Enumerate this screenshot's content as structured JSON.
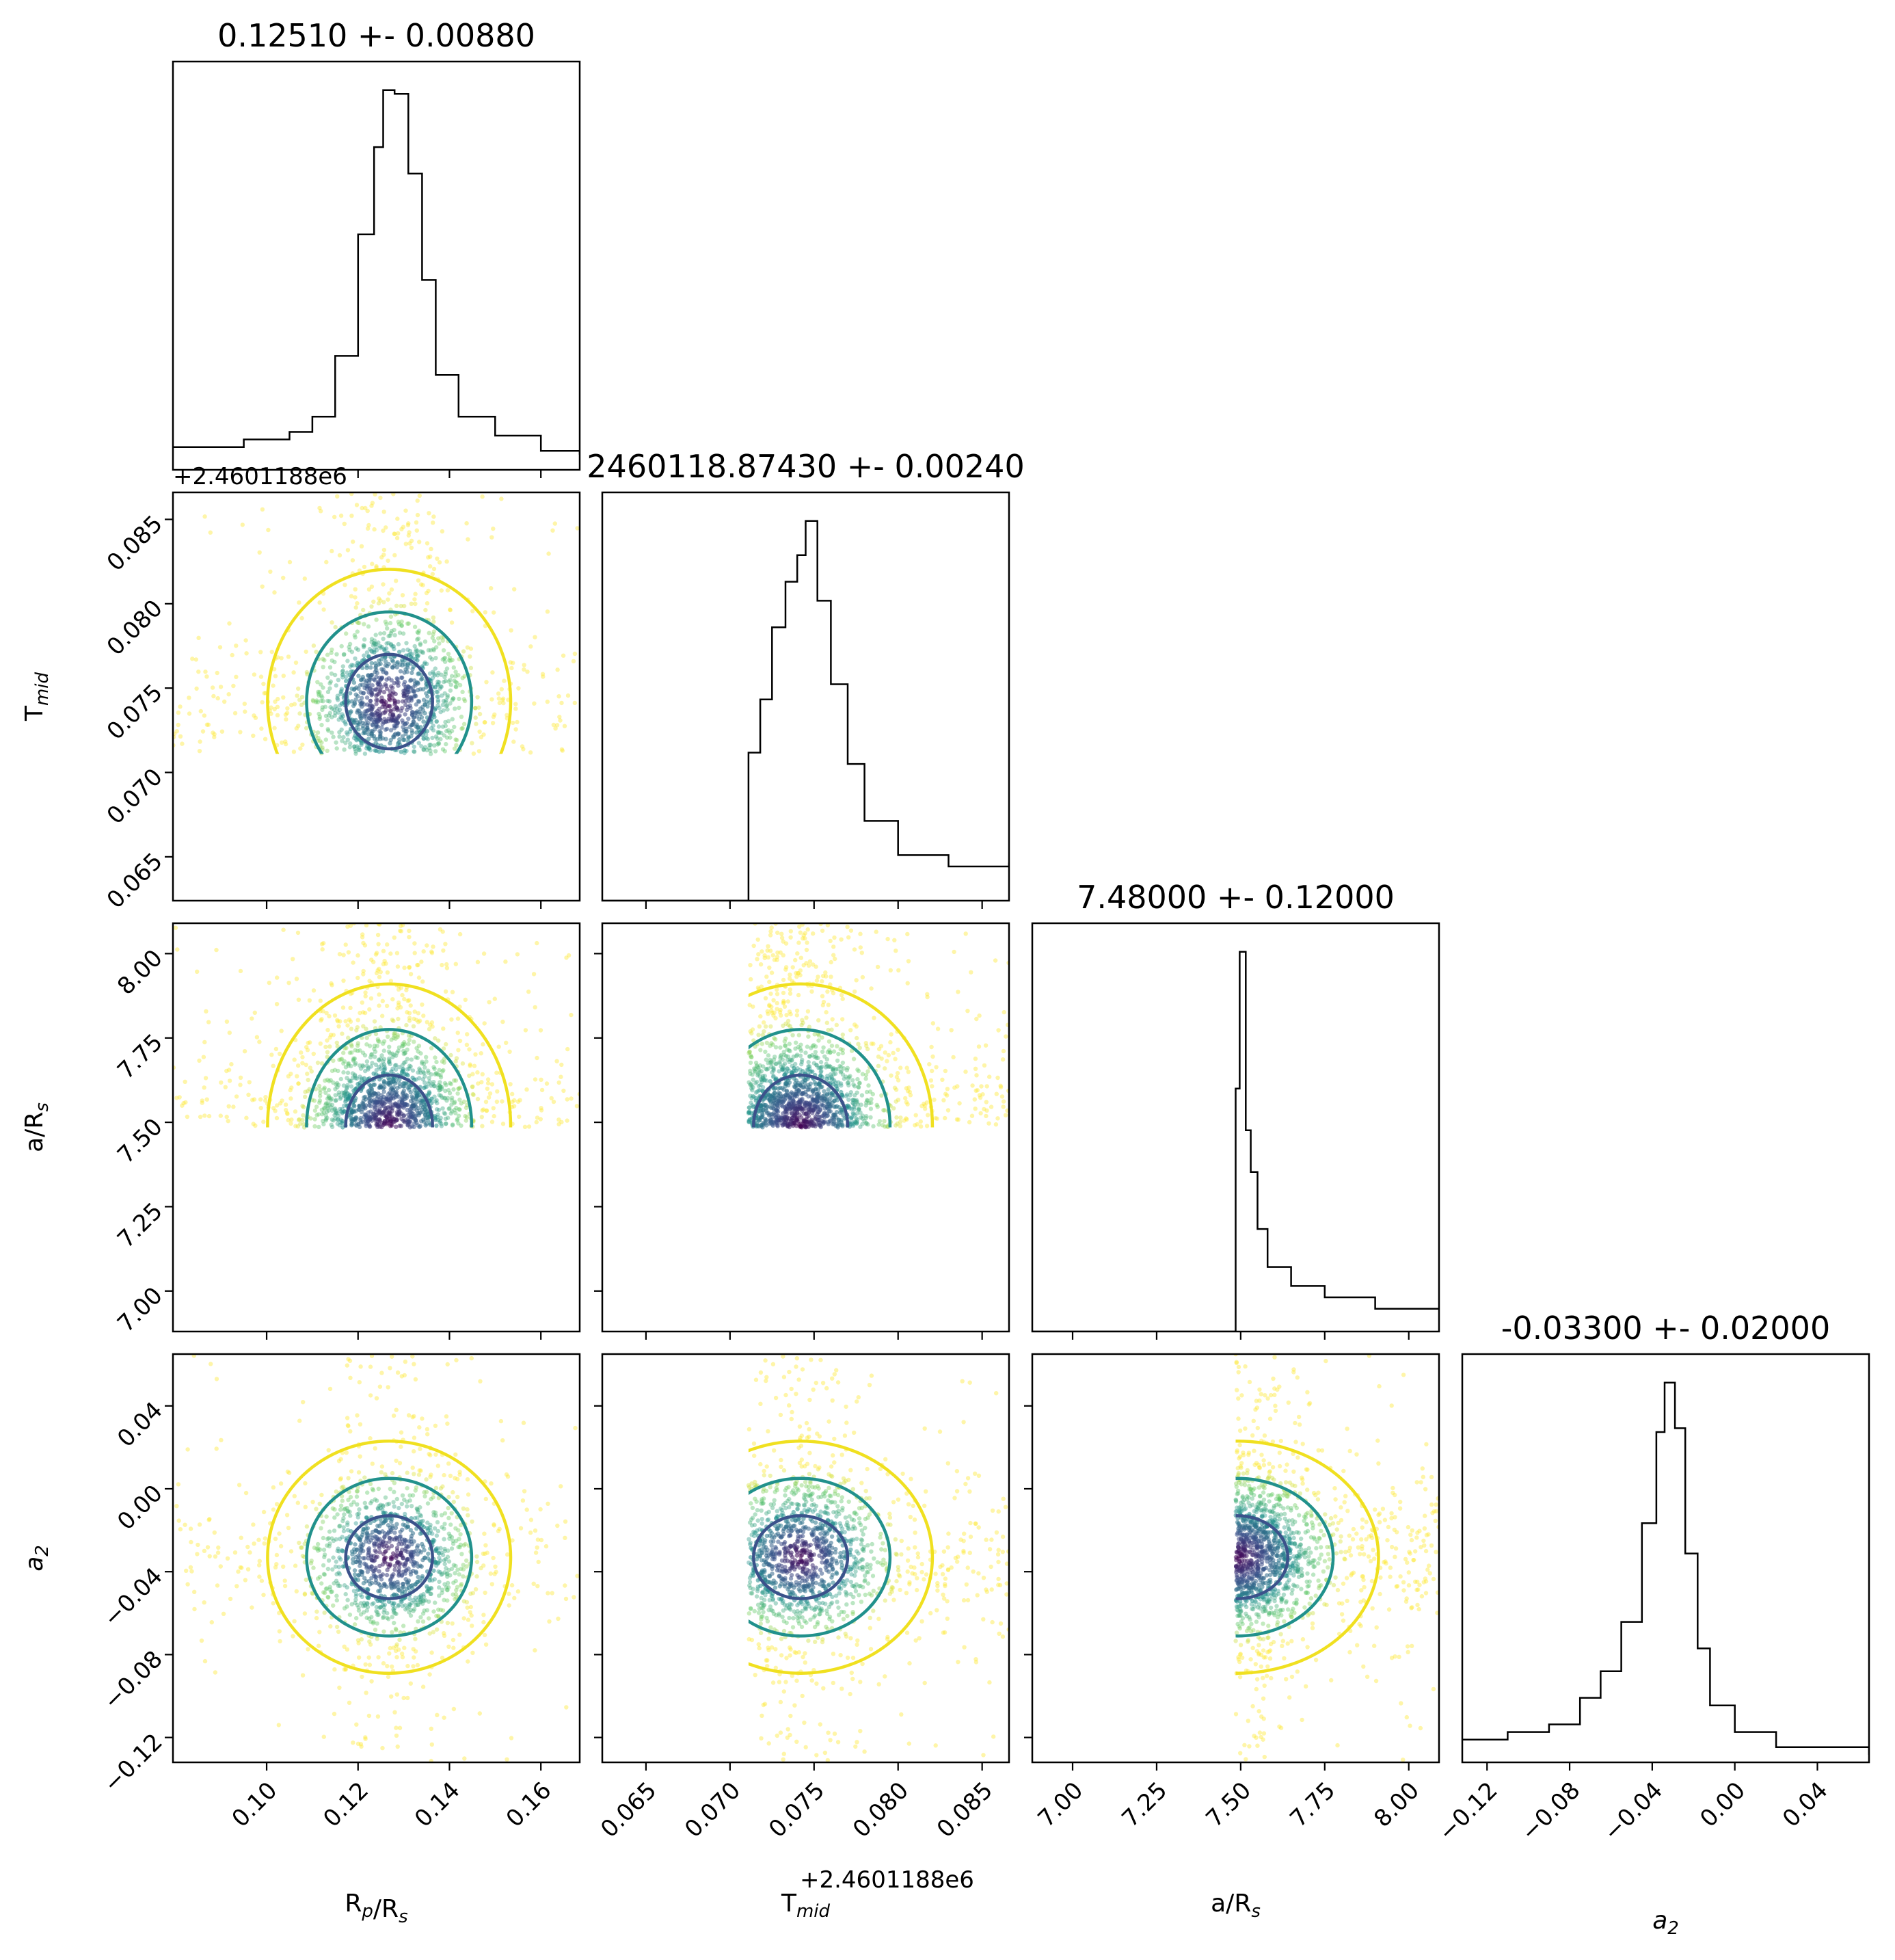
{
  "chart_data": {
    "type": "corner",
    "parameters": [
      {
        "key": "rp",
        "label": "R_p/R_s",
        "title": "0.12510 +- 0.00880",
        "range": [
          0.0795,
          0.1685
        ],
        "ticks": [
          0.1,
          0.12,
          0.14,
          0.16
        ],
        "tick_labels": [
          "0.10",
          "0.12",
          "0.14",
          "0.16"
        ],
        "center": 0.1268,
        "sigma": 0.0095
      },
      {
        "key": "tmid",
        "label": "T_mid",
        "title": "2460118.87430 +- 0.00240",
        "offset_label": "+2.4601188e6",
        "range": [
          0.0624,
          0.0866
        ],
        "ticks": [
          0.065,
          0.07,
          0.075,
          0.08,
          0.085
        ],
        "tick_labels": [
          "0.065",
          "0.070",
          "0.075",
          "0.080",
          "0.085"
        ],
        "center": 0.0742,
        "sigma": 0.0028,
        "lower_bound": 0.0711
      },
      {
        "key": "ars",
        "label": "a/R_s",
        "title": "7.48000 +- 0.12000",
        "range": [
          6.88,
          8.09
        ],
        "ticks": [
          7.0,
          7.25,
          7.5,
          7.75,
          8.0
        ],
        "tick_labels": [
          "7.00",
          "7.25",
          "7.50",
          "7.75",
          "8.00"
        ],
        "center": 7.49,
        "sigma": 0.15,
        "lower_bound": 7.485
      },
      {
        "key": "a2",
        "label": "a_2",
        "title": "-0.03300 +- 0.02000",
        "range": [
          -0.132,
          0.065
        ],
        "ticks": [
          -0.12,
          -0.08,
          -0.04,
          0.0,
          0.04
        ],
        "tick_labels": [
          "−0.12",
          "−0.08",
          "−0.04",
          "0.00",
          "0.04"
        ],
        "center": -0.033,
        "sigma": 0.02
      }
    ],
    "histograms": {
      "rp": [
        {
          "x": 0.0795,
          "v": 0.06
        },
        {
          "x": 0.095,
          "v": 0.08
        },
        {
          "x": 0.105,
          "v": 0.1
        },
        {
          "x": 0.11,
          "v": 0.14
        },
        {
          "x": 0.115,
          "v": 0.3
        },
        {
          "x": 0.12,
          "v": 0.62
        },
        {
          "x": 0.1235,
          "v": 0.85
        },
        {
          "x": 0.1255,
          "v": 1.0
        },
        {
          "x": 0.128,
          "v": 0.99
        },
        {
          "x": 0.131,
          "v": 0.78
        },
        {
          "x": 0.134,
          "v": 0.5
        },
        {
          "x": 0.137,
          "v": 0.25
        },
        {
          "x": 0.142,
          "v": 0.14
        },
        {
          "x": 0.15,
          "v": 0.09
        },
        {
          "x": 0.16,
          "v": 0.05
        },
        {
          "x": 0.1685,
          "v": 0.04
        }
      ],
      "tmid": [
        {
          "x": 0.0624,
          "v": 0
        },
        {
          "x": 0.0709,
          "v": 0
        },
        {
          "x": 0.0711,
          "v": 0.39
        },
        {
          "x": 0.0718,
          "v": 0.53
        },
        {
          "x": 0.0725,
          "v": 0.72
        },
        {
          "x": 0.0733,
          "v": 0.84
        },
        {
          "x": 0.074,
          "v": 0.91
        },
        {
          "x": 0.0745,
          "v": 1.0
        },
        {
          "x": 0.0752,
          "v": 0.79
        },
        {
          "x": 0.076,
          "v": 0.57
        },
        {
          "x": 0.077,
          "v": 0.36
        },
        {
          "x": 0.078,
          "v": 0.21
        },
        {
          "x": 0.08,
          "v": 0.12
        },
        {
          "x": 0.083,
          "v": 0.09
        },
        {
          "x": 0.0866,
          "v": 0.1
        }
      ],
      "ars": [
        {
          "x": 6.88,
          "v": 0
        },
        {
          "x": 7.483,
          "v": 0
        },
        {
          "x": 7.485,
          "v": 0.64
        },
        {
          "x": 7.497,
          "v": 1.0
        },
        {
          "x": 7.515,
          "v": 0.53
        },
        {
          "x": 7.53,
          "v": 0.42
        },
        {
          "x": 7.55,
          "v": 0.27
        },
        {
          "x": 7.58,
          "v": 0.17
        },
        {
          "x": 7.65,
          "v": 0.12
        },
        {
          "x": 7.75,
          "v": 0.09
        },
        {
          "x": 7.9,
          "v": 0.06
        },
        {
          "x": 8.09,
          "v": 0.06
        }
      ],
      "a2": [
        {
          "x": -0.132,
          "v": 0.06
        },
        {
          "x": -0.11,
          "v": 0.08
        },
        {
          "x": -0.09,
          "v": 0.1
        },
        {
          "x": -0.075,
          "v": 0.17
        },
        {
          "x": -0.065,
          "v": 0.24
        },
        {
          "x": -0.055,
          "v": 0.37
        },
        {
          "x": -0.045,
          "v": 0.63
        },
        {
          "x": -0.038,
          "v": 0.87
        },
        {
          "x": -0.034,
          "v": 1.0
        },
        {
          "x": -0.029,
          "v": 0.88
        },
        {
          "x": -0.024,
          "v": 0.55
        },
        {
          "x": -0.018,
          "v": 0.3
        },
        {
          "x": -0.012,
          "v": 0.15
        },
        {
          "x": 0.0,
          "v": 0.08
        },
        {
          "x": 0.02,
          "v": 0.04
        },
        {
          "x": 0.065,
          "v": 0.02
        }
      ]
    },
    "contour_levels": [
      "1 sigma",
      "2 sigma",
      "3 sigma"
    ],
    "contour_colors": [
      "#3b528b",
      "#21918c",
      "#f0e020"
    ],
    "point_colormap": "viridis",
    "frame_color": "#000000",
    "histogram_color": "#000000",
    "grid": false
  }
}
